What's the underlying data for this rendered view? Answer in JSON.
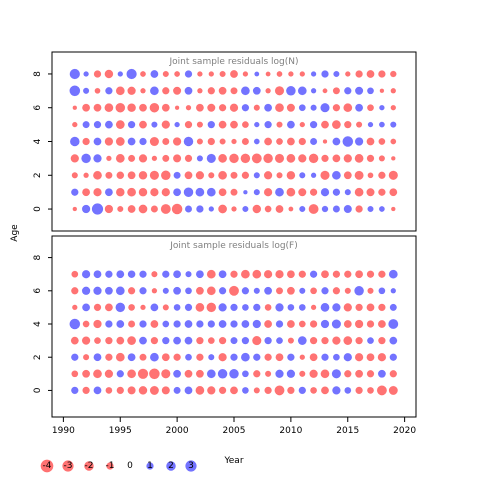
{
  "chart_data": {
    "type": "scatter",
    "xlabel": "Year",
    "ylabel": "Age",
    "xlim": [
      1989,
      2021
    ],
    "x_ticks": [
      1990,
      1995,
      2000,
      2005,
      2010,
      2015,
      2020
    ],
    "y_ticks": [
      0,
      2,
      4,
      6,
      8
    ],
    "colors": {
      "positive": "#0000ff",
      "negative": "#ff0000"
    },
    "panels": [
      {
        "title": "Joint sample residuals log(N)",
        "ylim": [
          -1.3,
          9.3
        ],
        "years": [
          1991,
          1992,
          1993,
          1994,
          1995,
          1996,
          1997,
          1998,
          1999,
          2000,
          2001,
          2002,
          2003,
          2004,
          2005,
          2006,
          2007,
          2008,
          2009,
          2010,
          2011,
          2012,
          2013,
          2014,
          2015,
          2016,
          2017,
          2018,
          2019
        ],
        "ages": [
          0,
          1,
          2,
          3,
          4,
          5,
          6,
          7,
          8
        ],
        "residuals": [
          [
            -0.2,
            1.4,
            3.0,
            -1.4,
            -0.6,
            -1.2,
            -1.6,
            -0.9,
            -2.2,
            -2.6,
            0.9,
            1.0,
            0.4,
            -1.6,
            -0.4,
            0.6,
            -1.5,
            -0.8,
            -1.2,
            -0.3,
            0.6,
            -2.2,
            0.7,
            0.9,
            1.3,
            -1.0,
            0.6,
            0.5,
            -0.2
          ],
          [
            1.0,
            -1.2,
            -1.4,
            1.2,
            -1.5,
            -1.6,
            -1.5,
            -1.4,
            -1.4,
            1.2,
            2.0,
            1.6,
            1.6,
            -1.2,
            -0.9,
            0.2,
            0.6,
            -1.4,
            1.6,
            -1.6,
            -1.3,
            -1.0,
            1.4,
            1.0,
            0.6,
            -1.6,
            -1.3,
            -1.0,
            -1.2
          ],
          [
            -0.6,
            -0.4,
            -1.6,
            -0.9,
            -1.1,
            -1.2,
            -1.5,
            -1.8,
            -2.0,
            0.9,
            -1.2,
            -1.4,
            -0.6,
            -1.6,
            -0.9,
            -1.0,
            0.6,
            -1.4,
            -0.6,
            -1.5,
            0.6,
            0.4,
            -1.8,
            1.6,
            -1.2,
            -1.7,
            -0.5,
            -1.0,
            -1.8
          ],
          [
            -1.4,
            2.0,
            1.4,
            -0.4,
            -1.6,
            -0.9,
            -1.4,
            -0.4,
            -0.9,
            -1.3,
            -1.0,
            0.6,
            1.8,
            -1.6,
            -2.0,
            -2.0,
            -2.2,
            -2.0,
            -1.8,
            -1.6,
            -1.4,
            -2.0,
            -1.0,
            -1.2,
            -1.4,
            -1.6,
            -1.0,
            -0.6,
            -0.2
          ],
          [
            2.0,
            -1.0,
            1.2,
            -1.4,
            -1.6,
            1.2,
            1.0,
            -1.8,
            -0.9,
            -1.4,
            2.0,
            -0.6,
            -1.0,
            -0.6,
            -0.4,
            -0.9,
            0.5,
            -1.2,
            -0.8,
            -1.2,
            -1.0,
            0.9,
            -0.2,
            1.2,
            2.6,
            1.4,
            -1.2,
            -0.8,
            -0.5
          ],
          [
            -0.4,
            0.9,
            1.0,
            1.2,
            -1.6,
            1.0,
            -1.2,
            0.6,
            -1.4,
            0.4,
            -1.0,
            -0.6,
            1.0,
            -1.2,
            -1.2,
            -0.8,
            0.4,
            1.0,
            -0.6,
            1.2,
            -0.4,
            1.0,
            -1.2,
            -1.6,
            -1.0,
            -0.6,
            0.4,
            0.5,
            0.6
          ],
          [
            -0.2,
            -1.2,
            -1.2,
            -1.6,
            -2.0,
            -1.5,
            -1.2,
            -2.0,
            -1.2,
            -0.2,
            -0.4,
            -1.2,
            -1.3,
            -1.0,
            -1.4,
            1.0,
            -0.6,
            1.2,
            -1.6,
            -1.3,
            0.8,
            0.6,
            1.8,
            -1.0,
            -1.6,
            1.2,
            -0.8,
            0.4,
            -0.4
          ],
          [
            2.6,
            0.6,
            -0.5,
            1.0,
            -1.6,
            -1.4,
            -0.4,
            1.6,
            -1.0,
            -1.3,
            1.2,
            -0.4,
            -1.0,
            -1.2,
            -0.9,
            1.6,
            1.2,
            -0.4,
            -1.8,
            2.0,
            1.6,
            0.4,
            -0.3,
            -0.9,
            1.0,
            1.3,
            0.8,
            -0.2,
            -0.4
          ],
          [
            2.4,
            0.4,
            -1.0,
            -1.5,
            0.4,
            2.4,
            -0.5,
            1.2,
            -0.6,
            -0.5,
            1.0,
            -0.4,
            -0.4,
            -0.6,
            -1.2,
            -0.4,
            0.3,
            -0.3,
            -0.5,
            -0.4,
            -0.4,
            0.4,
            1.0,
            0.6,
            -0.4,
            -1.0,
            -1.2,
            -1.0,
            -0.7
          ]
        ]
      },
      {
        "title": "Joint sample residuals log(F)",
        "ylim": [
          -1.6,
          9.3
        ],
        "years": [
          1991,
          1992,
          1993,
          1994,
          1995,
          1996,
          1997,
          1998,
          1999,
          2000,
          2001,
          2002,
          2003,
          2004,
          2005,
          2006,
          2007,
          2008,
          2009,
          2010,
          2011,
          2012,
          2013,
          2014,
          2015,
          2016,
          2017,
          2018,
          2019
        ],
        "ages": [
          0,
          1,
          2,
          3,
          4,
          5,
          6,
          7
        ],
        "residuals": [
          [
            1.0,
            -1.0,
            1.2,
            -0.8,
            -1.0,
            -1.3,
            -1.5,
            -1.7,
            -1.3,
            0.9,
            1.2,
            -1.6,
            -1.4,
            -1.0,
            -1.2,
            0.8,
            -0.6,
            -1.0,
            -2.2,
            -1.0,
            1.0,
            -0.8,
            -1.2,
            1.4,
            0.8,
            -1.0,
            -0.8,
            -2.2,
            -1.7
          ],
          [
            -0.8,
            -1.2,
            -1.6,
            -1.4,
            1.0,
            -1.6,
            -2.4,
            -2.6,
            -1.8,
            1.2,
            -1.2,
            -1.2,
            1.6,
            2.0,
            2.0,
            0.8,
            -1.0,
            -0.6,
            1.4,
            1.4,
            -0.6,
            -1.4,
            -1.6,
            1.8,
            -1.0,
            -1.2,
            -1.0,
            1.2,
            -1.0
          ],
          [
            1.0,
            -0.6,
            1.2,
            -1.0,
            -1.6,
            1.2,
            -0.9,
            1.6,
            -1.2,
            -1.0,
            0.8,
            -1.0,
            0.6,
            -1.4,
            1.0,
            1.6,
            1.0,
            -1.0,
            -1.2,
            1.0,
            -0.4,
            -1.2,
            1.0,
            0.8,
            1.4,
            -1.4,
            -1.2,
            -1.4,
            1.0
          ],
          [
            -1.2,
            -1.4,
            -0.8,
            -1.0,
            -1.2,
            -1.6,
            1.2,
            -1.0,
            1.0,
            1.2,
            1.2,
            -1.0,
            -0.8,
            -1.0,
            0.9,
            1.0,
            -1.8,
            1.0,
            0.8,
            -0.6,
            1.6,
            -1.0,
            -1.0,
            -1.4,
            -1.6,
            -1.0,
            0.8,
            -1.0,
            1.2
          ],
          [
            2.6,
            -0.8,
            -1.4,
            1.0,
            1.2,
            -0.9,
            1.0,
            -1.2,
            0.8,
            1.0,
            1.2,
            1.0,
            1.0,
            1.2,
            1.0,
            1.2,
            1.4,
            -1.2,
            1.0,
            -1.2,
            -0.8,
            -1.0,
            1.4,
            1.8,
            -1.2,
            -1.4,
            -1.0,
            -1.2,
            2.2
          ],
          [
            -0.4,
            1.2,
            -1.0,
            -1.2,
            2.0,
            -0.8,
            -0.4,
            1.2,
            -0.6,
            0.8,
            1.0,
            -1.6,
            -2.0,
            1.4,
            1.0,
            0.8,
            1.0,
            -0.8,
            1.4,
            0.8,
            0.8,
            -0.4,
            1.6,
            1.4,
            -1.4,
            -1.0,
            -1.2,
            -1.0,
            0.9
          ],
          [
            -1.0,
            1.4,
            1.4,
            1.2,
            1.6,
            -1.0,
            1.0,
            -0.4,
            0.6,
            1.2,
            0.8,
            -1.2,
            -1.6,
            1.0,
            -2.2,
            1.0,
            0.6,
            1.2,
            -0.9,
            -1.2,
            0.6,
            -0.8,
            1.0,
            -1.0,
            -0.6,
            2.0,
            -0.6,
            0.8,
            0.4
          ],
          [
            -0.8,
            1.4,
            1.2,
            1.0,
            1.2,
            1.1,
            1.0,
            -0.6,
            1.0,
            1.2,
            0.6,
            1.2,
            -1.6,
            1.2,
            -1.0,
            -1.6,
            -1.6,
            -1.4,
            -1.4,
            -1.2,
            -1.0,
            1.0,
            -1.2,
            -1.0,
            -1.0,
            -1.2,
            -1.0,
            -1.0,
            1.6
          ]
        ]
      }
    ],
    "legend": {
      "placement": "bottom-left",
      "entries": [
        "-4",
        "-3",
        "-2",
        "-1",
        "0",
        "1",
        "2",
        "3"
      ]
    }
  }
}
